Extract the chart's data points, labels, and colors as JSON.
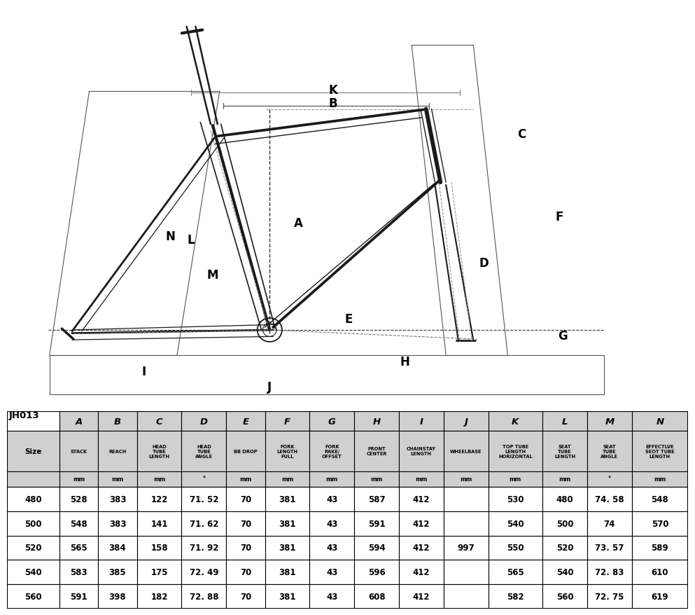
{
  "title_label": "JH013",
  "table_headers_row1": [
    "",
    "A",
    "B",
    "C",
    "D",
    "E",
    "F",
    "G",
    "H",
    "I",
    "J",
    "K",
    "L",
    "M",
    "N"
  ],
  "table_headers_row2": [
    "Size",
    "STACK",
    "REACH",
    "HEAD\nTUBE\nLENGTH",
    "HEAD\nTUBE\nANGLE",
    "BB DROP",
    "FORK\nLENGTH\nFULL",
    "FORK\nRAKE/\nOFFSET",
    "FRONT\nCENTER",
    "CHAINSTAY\nLENGTH",
    "WHEELBASE",
    "TOP TUBE\nLENGTH\nHORIZONTAL",
    "SEAT\nTUBE\nLENGTH",
    "SEAT\nTUBE\nANGLE",
    "EFFECTLVE\nSEOT TUBE\nLENGTH"
  ],
  "table_headers_row3": [
    "",
    "mm",
    "mm",
    "mm",
    "°",
    "mm",
    "mm",
    "mm",
    "mm",
    "mm",
    "mm",
    "mm",
    "mm",
    "°",
    "mm"
  ],
  "table_data": [
    [
      "480",
      "528",
      "383",
      "122",
      "71. 52",
      "70",
      "381",
      "43",
      "587",
      "412",
      "",
      "530",
      "480",
      "74. 58",
      "548"
    ],
    [
      "500",
      "548",
      "383",
      "141",
      "71. 62",
      "70",
      "381",
      "43",
      "591",
      "412",
      "",
      "540",
      "500",
      "74",
      "570"
    ],
    [
      "520",
      "565",
      "384",
      "158",
      "71. 92",
      "70",
      "381",
      "43",
      "594",
      "412",
      "997",
      "550",
      "520",
      "73. 57",
      "589"
    ],
    [
      "540",
      "583",
      "385",
      "175",
      "72. 49",
      "70",
      "381",
      "43",
      "596",
      "412",
      "",
      "565",
      "540",
      "72. 83",
      "610"
    ],
    [
      "560",
      "591",
      "398",
      "182",
      "72. 88",
      "70",
      "381",
      "43",
      "608",
      "412",
      "",
      "582",
      "560",
      "72. 75",
      "619"
    ]
  ],
  "col_widths_raw": [
    1.35,
    1.0,
    1.0,
    1.15,
    1.15,
    1.0,
    1.15,
    1.15,
    1.15,
    1.15,
    1.15,
    1.4,
    1.15,
    1.15,
    1.45
  ],
  "row_heights": [
    0.62,
    1.25,
    0.48,
    0.76,
    0.76,
    0.76,
    0.76,
    0.76
  ],
  "bg_color": "#ffffff",
  "header_bg": "#d0d0d0",
  "diagram_bg": "#ffffff",
  "frame_color": "#1a1a1a",
  "label_color": "#000000"
}
